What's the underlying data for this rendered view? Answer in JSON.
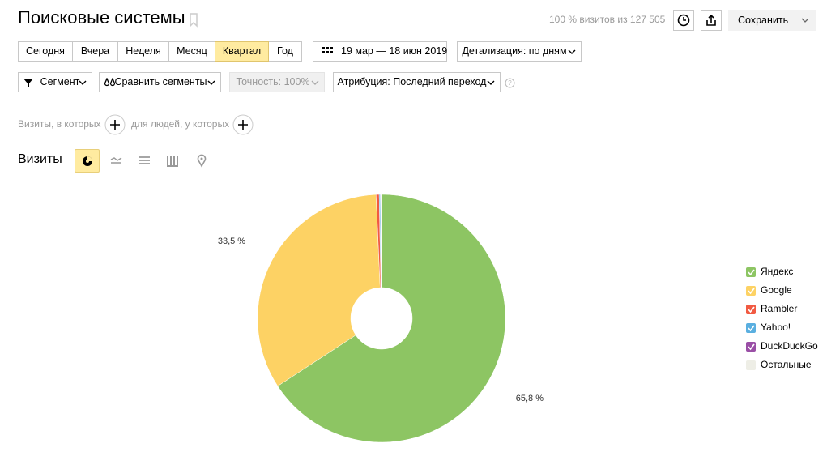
{
  "header": {
    "title": "Поисковые системы",
    "summary": "100 % визитов из 127 505",
    "save": "Сохранить"
  },
  "periods": [
    "Сегодня",
    "Вчера",
    "Неделя",
    "Месяц",
    "Квартал",
    "Год"
  ],
  "date_range": "19 мар — 18 июн 2019",
  "detail": "Детализация: по дням",
  "filters": {
    "segment": "Сегмент",
    "compare": "Сравнить сегменты",
    "accuracy": "Точность: 100%",
    "attribution": "Атрибуция: Последний переход"
  },
  "conditions": {
    "visits": "Визиты, в которых",
    "people": "для людей, у которых"
  },
  "metric": "Визиты",
  "chart_data": {
    "type": "donut",
    "categories": [
      "Яндекс",
      "Google",
      "Rambler",
      "Yahoo!",
      "DuckDuckGo",
      "Остальные"
    ],
    "values": [
      65.8,
      33.5,
      0.4,
      0.15,
      0.05,
      0.1
    ],
    "value_labels": [
      "65,8 %",
      "33,5 %",
      null,
      null,
      null,
      null
    ],
    "colors": [
      "#8dc563",
      "#fdd264",
      "#f15a42",
      "#5aafe0",
      "#9a4fa6",
      "#eeeee6"
    ]
  }
}
